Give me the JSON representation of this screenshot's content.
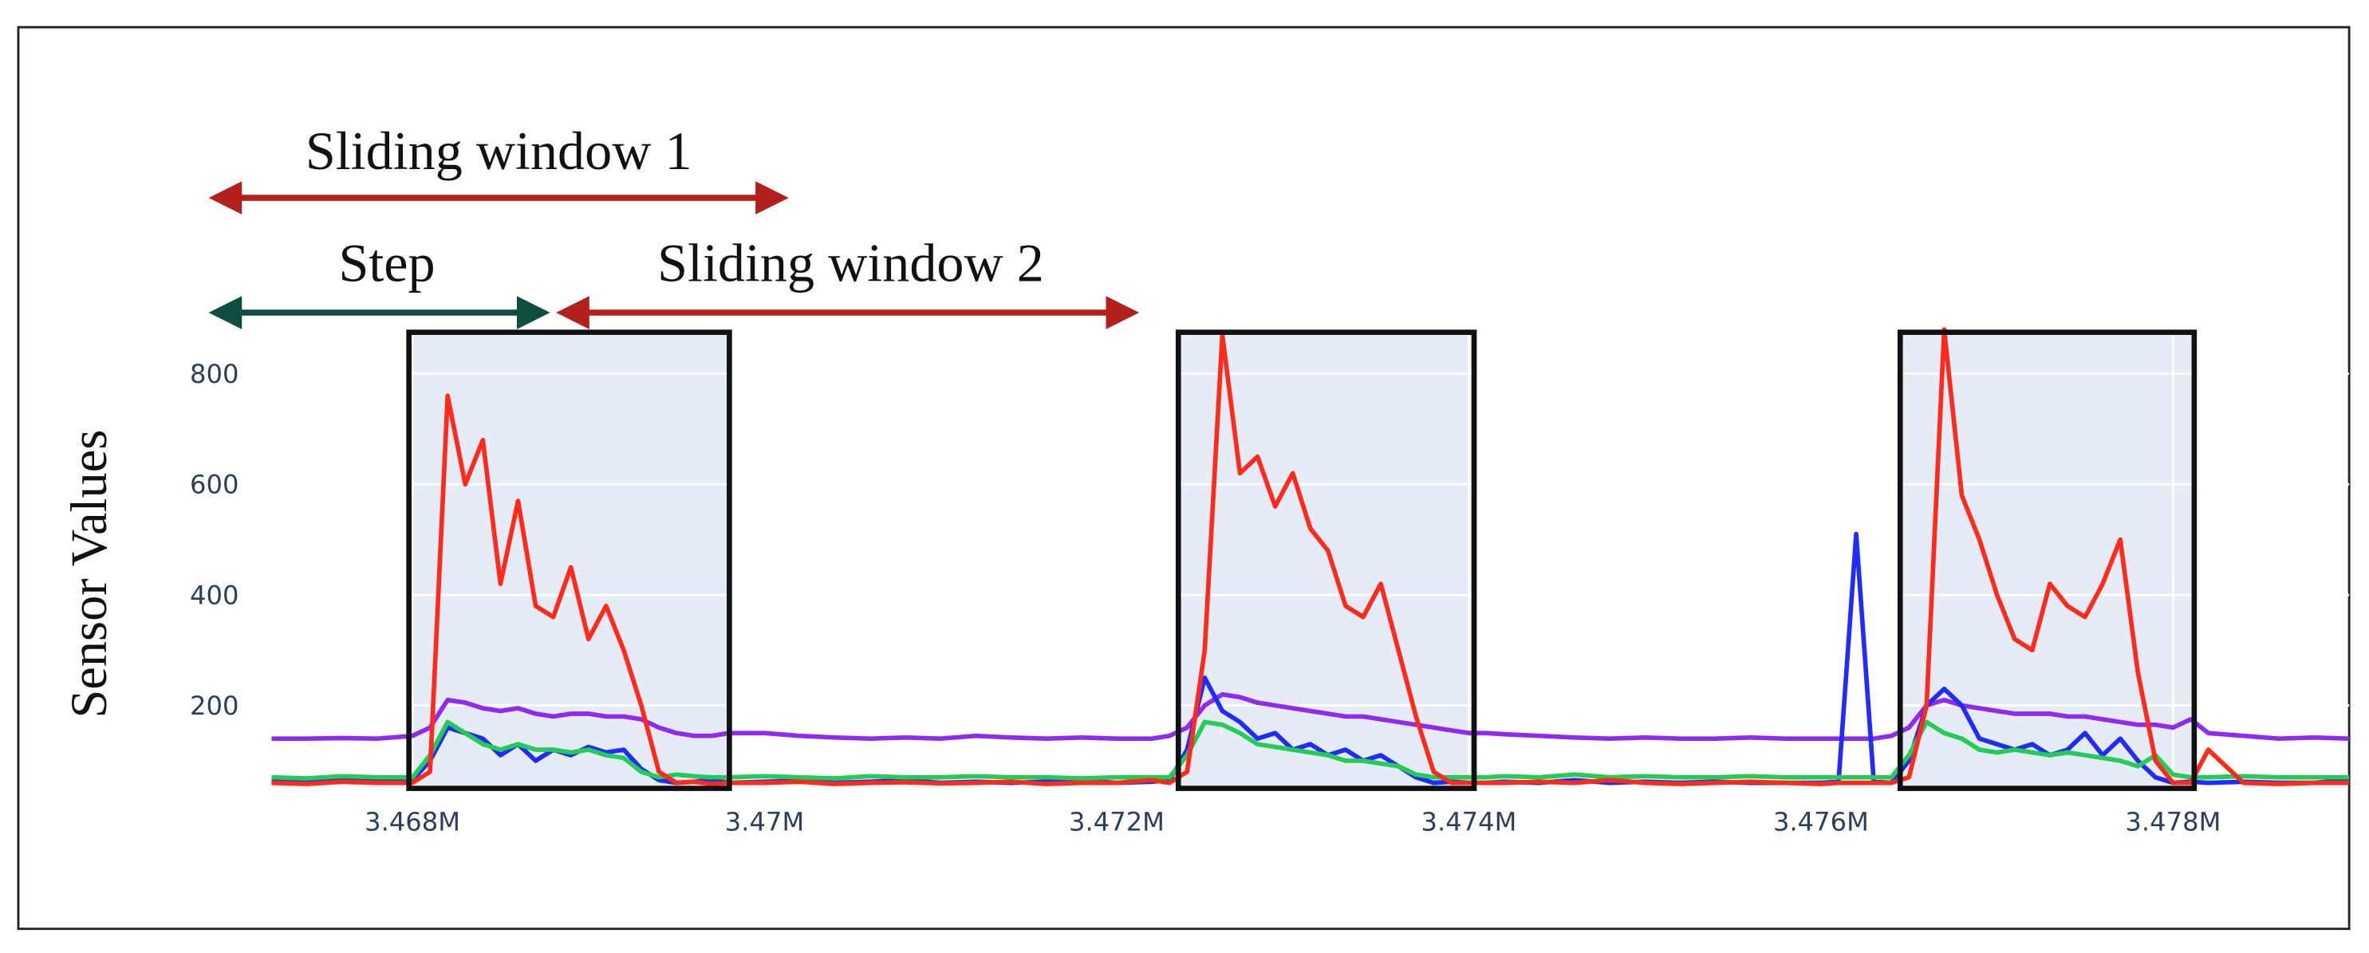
{
  "chart_data": {
    "type": "line",
    "y_title": "Sensor Values",
    "annotations": [
      "Sliding window 1",
      "Step",
      "Sliding window 2"
    ],
    "x": [
      3467200,
      3467400,
      3467600,
      3467800,
      3468000,
      3468100,
      3468200,
      3468300,
      3468400,
      3468500,
      3468600,
      3468700,
      3468800,
      3468900,
      3469000,
      3469100,
      3469200,
      3469300,
      3469400,
      3469500,
      3469600,
      3469700,
      3469800,
      3470000,
      3470200,
      3470400,
      3470600,
      3470800,
      3471000,
      3471200,
      3471400,
      3471600,
      3471800,
      3472000,
      3472200,
      3472300,
      3472400,
      3472500,
      3472600,
      3472700,
      3472800,
      3472900,
      3473000,
      3473100,
      3473200,
      3473300,
      3473400,
      3473500,
      3473600,
      3473700,
      3473800,
      3473900,
      3474000,
      3474100,
      3474200,
      3474400,
      3474600,
      3474800,
      3475000,
      3475200,
      3475400,
      3475600,
      3475800,
      3476000,
      3476100,
      3476200,
      3476300,
      3476400,
      3476500,
      3476600,
      3476700,
      3476800,
      3476900,
      3477000,
      3477100,
      3477200,
      3477300,
      3477400,
      3477500,
      3477600,
      3477700,
      3477800,
      3477900,
      3478000,
      3478100,
      3478200,
      3478400,
      3478600,
      3478800,
      3479000
    ],
    "series": [
      {
        "color": "#8f2bf0",
        "values": [
          140,
          140,
          141,
          140,
          145,
          160,
          210,
          205,
          195,
          190,
          195,
          185,
          180,
          185,
          185,
          180,
          180,
          175,
          160,
          150,
          145,
          145,
          150,
          150,
          145,
          142,
          140,
          142,
          140,
          145,
          142,
          140,
          142,
          140,
          140,
          145,
          160,
          200,
          220,
          215,
          205,
          200,
          195,
          190,
          185,
          180,
          180,
          175,
          170,
          165,
          160,
          155,
          150,
          150,
          148,
          145,
          142,
          140,
          142,
          140,
          140,
          142,
          140,
          140,
          140,
          140,
          140,
          145,
          160,
          200,
          210,
          200,
          195,
          190,
          185,
          185,
          185,
          180,
          180,
          175,
          170,
          165,
          165,
          160,
          175,
          150,
          145,
          140,
          142,
          140
        ]
      },
      {
        "color": "#1f2bff",
        "values": [
          65,
          62,
          68,
          64,
          65,
          100,
          160,
          150,
          140,
          110,
          130,
          100,
          120,
          110,
          125,
          115,
          120,
          85,
          65,
          60,
          62,
          65,
          60,
          62,
          64,
          60,
          62,
          65,
          60,
          62,
          60,
          62,
          64,
          60,
          62,
          65,
          120,
          250,
          190,
          170,
          140,
          150,
          120,
          130,
          110,
          120,
          100,
          110,
          90,
          70,
          60,
          62,
          60,
          60,
          62,
          60,
          65,
          60,
          62,
          60,
          62,
          60,
          60,
          60,
          62,
          510,
          62,
          60,
          100,
          200,
          230,
          200,
          140,
          130,
          120,
          130,
          110,
          120,
          150,
          110,
          140,
          100,
          70,
          60,
          62,
          60,
          62,
          60,
          60,
          65
        ]
      },
      {
        "color": "#22cc55",
        "values": [
          70,
          68,
          72,
          70,
          70,
          110,
          170,
          150,
          130,
          120,
          130,
          120,
          120,
          115,
          120,
          110,
          105,
          80,
          70,
          75,
          72,
          70,
          70,
          72,
          70,
          68,
          72,
          70,
          70,
          72,
          70,
          70,
          68,
          70,
          70,
          70,
          110,
          170,
          165,
          150,
          130,
          125,
          120,
          115,
          110,
          100,
          100,
          95,
          90,
          75,
          70,
          70,
          70,
          70,
          72,
          70,
          75,
          70,
          72,
          70,
          70,
          72,
          70,
          70,
          70,
          70,
          70,
          70,
          110,
          170,
          150,
          140,
          120,
          115,
          120,
          115,
          110,
          115,
          110,
          105,
          100,
          90,
          110,
          75,
          70,
          70,
          72,
          70,
          70,
          70
        ]
      },
      {
        "color": "#ff2a1a",
        "values": [
          60,
          58,
          62,
          60,
          60,
          80,
          760,
          600,
          680,
          420,
          570,
          380,
          360,
          450,
          320,
          380,
          300,
          200,
          80,
          60,
          62,
          58,
          60,
          60,
          62,
          58,
          60,
          61,
          59,
          60,
          62,
          58,
          60,
          60,
          65,
          60,
          80,
          300,
          870,
          620,
          650,
          560,
          620,
          520,
          480,
          380,
          360,
          420,
          300,
          180,
          80,
          60,
          60,
          60,
          60,
          62,
          60,
          65,
          60,
          58,
          60,
          62,
          60,
          58,
          60,
          60,
          60,
          60,
          70,
          200,
          880,
          580,
          500,
          400,
          320,
          300,
          420,
          380,
          360,
          420,
          500,
          260,
          100,
          60,
          60,
          120,
          60,
          58,
          60,
          60
        ]
      }
    ],
    "shaded_regions": [
      [
        3467980,
        3469800
      ],
      [
        3472350,
        3474030
      ],
      [
        3476450,
        3478120
      ]
    ],
    "xlim": [
      3467100,
      3479000
    ],
    "ylim": [
      50,
      875
    ],
    "xticks": [
      {
        "value": 3468000,
        "label": "3.468M"
      },
      {
        "value": 3470000,
        "label": "3.47M"
      },
      {
        "value": 3472000,
        "label": "3.472M"
      },
      {
        "value": 3474000,
        "label": "3.474M"
      },
      {
        "value": 3476000,
        "label": "3.476M"
      },
      {
        "value": 3478000,
        "label": "3.478M"
      }
    ],
    "yticks": [
      200,
      400,
      600,
      800
    ],
    "grid": true
  }
}
